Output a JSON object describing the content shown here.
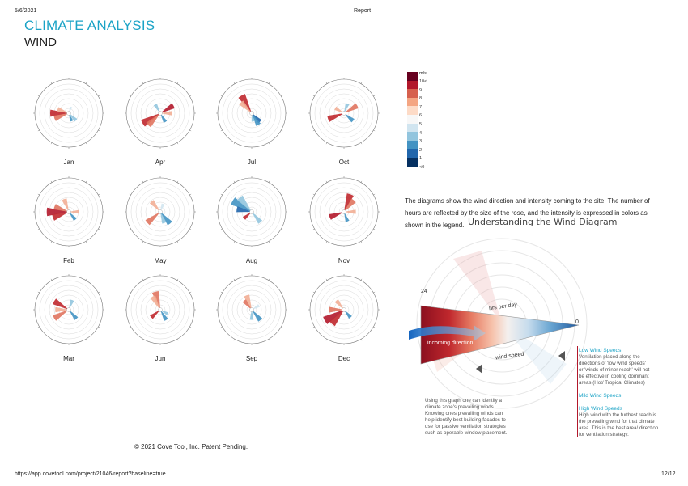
{
  "header": {
    "date": "5/6/2021",
    "center": "Report",
    "title": "CLIMATE ANALYSIS",
    "subtitle": "WIND"
  },
  "roses": [
    {
      "month": "Jan",
      "scale": "near",
      "petals": [
        {
          "dir": 270,
          "len": 0.55,
          "color": "#c0282d"
        },
        {
          "dir": 250,
          "len": 0.45,
          "color": "#e0745f"
        },
        {
          "dir": 290,
          "len": 0.35,
          "color": "#f2ae95"
        },
        {
          "dir": 135,
          "len": 0.3,
          "color": "#92c5de"
        },
        {
          "dir": 160,
          "len": 0.25,
          "color": "#4393c3"
        },
        {
          "dir": 20,
          "len": 0.2,
          "color": "#d1e5f0"
        }
      ]
    },
    {
      "month": "Apr",
      "scale": "near",
      "petals": [
        {
          "dir": 240,
          "len": 0.6,
          "color": "#c0282d"
        },
        {
          "dir": 225,
          "len": 0.5,
          "color": "#e0745f"
        },
        {
          "dir": 60,
          "len": 0.45,
          "color": "#b2182b"
        },
        {
          "dir": 90,
          "len": 0.35,
          "color": "#f2ae95"
        },
        {
          "dir": 150,
          "len": 0.3,
          "color": "#4393c3"
        },
        {
          "dir": 330,
          "len": 0.3,
          "color": "#92c5de"
        }
      ]
    },
    {
      "month": "Jul",
      "scale": "near",
      "petals": [
        {
          "dir": 330,
          "len": 0.6,
          "color": "#c0282d"
        },
        {
          "dir": 315,
          "len": 0.45,
          "color": "#f2ae95"
        },
        {
          "dir": 135,
          "len": 0.35,
          "color": "#2166ac"
        },
        {
          "dir": 150,
          "len": 0.4,
          "color": "#4393c3"
        },
        {
          "dir": 170,
          "len": 0.25,
          "color": "#92c5de"
        }
      ]
    },
    {
      "month": "Oct",
      "scale": "near",
      "petals": [
        {
          "dir": 250,
          "len": 0.5,
          "color": "#c0282d"
        },
        {
          "dir": 60,
          "len": 0.45,
          "color": "#e0745f"
        },
        {
          "dir": 130,
          "len": 0.35,
          "color": "#4393c3"
        },
        {
          "dir": 300,
          "len": 0.3,
          "color": "#f2ae95"
        },
        {
          "dir": 20,
          "len": 0.3,
          "color": "#92c5de"
        }
      ]
    },
    {
      "month": "Feb",
      "scale": "near",
      "petals": [
        {
          "dir": 270,
          "len": 0.65,
          "color": "#b2182b"
        },
        {
          "dir": 250,
          "len": 0.5,
          "color": "#c0282d"
        },
        {
          "dir": 290,
          "len": 0.45,
          "color": "#e0745f"
        },
        {
          "dir": 340,
          "len": 0.4,
          "color": "#f2ae95"
        },
        {
          "dir": 140,
          "len": 0.3,
          "color": "#4393c3"
        },
        {
          "dir": 90,
          "len": 0.3,
          "color": "#f2ae95"
        }
      ]
    },
    {
      "month": "May",
      "scale": "near",
      "petals": [
        {
          "dir": 230,
          "len": 0.5,
          "color": "#e0745f"
        },
        {
          "dir": 320,
          "len": 0.4,
          "color": "#f2ae95"
        },
        {
          "dir": 140,
          "len": 0.45,
          "color": "#4393c3"
        },
        {
          "dir": 160,
          "len": 0.35,
          "color": "#92c5de"
        },
        {
          "dir": 20,
          "len": 0.25,
          "color": "#d1e5f0"
        }
      ]
    },
    {
      "month": "Aug",
      "scale": "near",
      "petals": [
        {
          "dir": 300,
          "len": 0.65,
          "color": "#4393c3"
        },
        {
          "dir": 320,
          "len": 0.55,
          "color": "#92c5de"
        },
        {
          "dir": 280,
          "len": 0.45,
          "color": "#2166ac"
        },
        {
          "dir": 140,
          "len": 0.4,
          "color": "#92c5de"
        },
        {
          "dir": 230,
          "len": 0.3,
          "color": "#c0282d"
        }
      ]
    },
    {
      "month": "Nov",
      "scale": "near",
      "petals": [
        {
          "dir": 20,
          "len": 0.55,
          "color": "#c0282d"
        },
        {
          "dir": 40,
          "len": 0.45,
          "color": "#e0745f"
        },
        {
          "dir": 250,
          "len": 0.45,
          "color": "#b2182b"
        },
        {
          "dir": 90,
          "len": 0.35,
          "color": "#f2ae95"
        },
        {
          "dir": 160,
          "len": 0.3,
          "color": "#4393c3"
        }
      ]
    },
    {
      "month": "Mar",
      "scale": "near",
      "petals": [
        {
          "dir": 300,
          "len": 0.5,
          "color": "#c0282d"
        },
        {
          "dir": 240,
          "len": 0.5,
          "color": "#e0745f"
        },
        {
          "dir": 270,
          "len": 0.4,
          "color": "#f2ae95"
        },
        {
          "dir": 140,
          "len": 0.35,
          "color": "#4393c3"
        },
        {
          "dir": 20,
          "len": 0.3,
          "color": "#92c5de"
        }
      ]
    },
    {
      "month": "Jun",
      "scale": "near",
      "petals": [
        {
          "dir": 345,
          "len": 0.55,
          "color": "#e0745f"
        },
        {
          "dir": 330,
          "len": 0.45,
          "color": "#f2ae95"
        },
        {
          "dir": 230,
          "len": 0.35,
          "color": "#c0282d"
        },
        {
          "dir": 150,
          "len": 0.35,
          "color": "#4393c3"
        },
        {
          "dir": 120,
          "len": 0.25,
          "color": "#92c5de"
        }
      ]
    },
    {
      "month": "Sep",
      "scale": "near",
      "petals": [
        {
          "dir": 340,
          "len": 0.45,
          "color": "#f2ae95"
        },
        {
          "dir": 320,
          "len": 0.35,
          "color": "#e0745f"
        },
        {
          "dir": 140,
          "len": 0.4,
          "color": "#4393c3"
        },
        {
          "dir": 180,
          "len": 0.3,
          "color": "#92c5de"
        },
        {
          "dir": 60,
          "len": 0.25,
          "color": "#d1e5f0"
        }
      ]
    },
    {
      "month": "Dec",
      "scale": "near",
      "petals": [
        {
          "dir": 240,
          "len": 0.65,
          "color": "#b2182b"
        },
        {
          "dir": 220,
          "len": 0.55,
          "color": "#c0282d"
        },
        {
          "dir": 270,
          "len": 0.45,
          "color": "#e0745f"
        },
        {
          "dir": 320,
          "len": 0.35,
          "color": "#f2ae95"
        },
        {
          "dir": 140,
          "len": 0.3,
          "color": "#4393c3"
        }
      ]
    }
  ],
  "legend": {
    "unit": "m/s",
    "labels": [
      "10<",
      "9",
      "8",
      "7",
      "6",
      "5",
      "4",
      "3",
      "2",
      "1",
      "<0"
    ],
    "colors": [
      "#67001f",
      "#b2182b",
      "#d6604d",
      "#f4a582",
      "#fddbc7",
      "#f7f7f7",
      "#d1e5f0",
      "#92c5de",
      "#4393c3",
      "#2166ac",
      "#053061"
    ]
  },
  "description": "The diagrams show the wind direction and intensity coming to the site. The number of hours are reflected by the size of the rose, and the intensity is expressed in colors as shown in the legend.",
  "diagram": {
    "title": "Understanding the Wind Diagram",
    "label_24": "24",
    "label_0": "0",
    "hrs_per_day": "hrs per day",
    "incoming": "incoming direction",
    "wind_speed": "wind speed",
    "low_title": "Low Wind Speeds",
    "low_text": [
      "Ventilation placed along the",
      "directions of 'low wind speeds'",
      "or 'winds of minor reach' will not",
      "be effective in cooling dominant",
      "areas (Hot/ Tropical Climates)"
    ],
    "mild_title": "Mild Wind Speeds",
    "high_title": "High Wind Speeds",
    "high_text": [
      "High wind with the furthest reach is",
      "the prevailing wind for that climate",
      "area. This is the best area/ direction",
      "for ventilation strategy."
    ],
    "using_text": [
      "Using this graph one can identify a",
      "climate zone's prevailing winds.",
      "Knowing ones prevailing winds can",
      "help identify best building facades to",
      "use for passive ventilation strategies",
      "such as operable window placement."
    ]
  },
  "footer": {
    "copyright": "© 2021 Cove Tool, Inc. Patent Pending.",
    "url": "https://app.covetool.com/project/21046/report?baseline=true",
    "page": "12/12"
  }
}
